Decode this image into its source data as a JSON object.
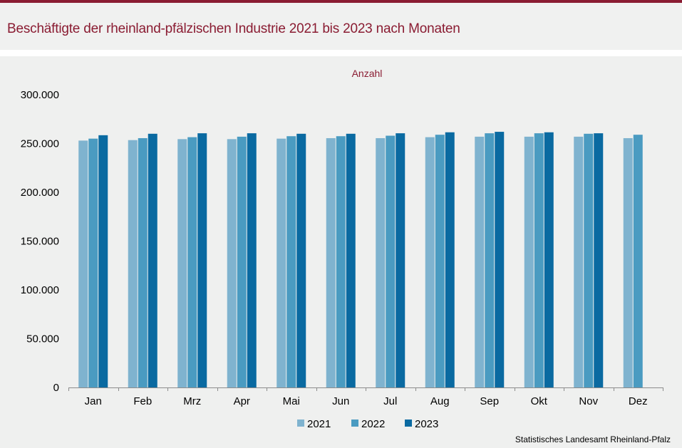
{
  "header": {
    "title": "Beschäftigte der rheinland-pfälzischen Industrie 2021 bis 2023 nach Monaten"
  },
  "footer": {
    "source": "Statistisches Landesamt  Rheinland-Pfalz"
  },
  "colors": {
    "accent": "#8a1c32",
    "series_2021": "#7fb3cf",
    "series_2022": "#4a9bc1",
    "series_2023": "#0a6aa1"
  },
  "chart_data": {
    "type": "bar",
    "title": "Beschäftigte der rheinland-pfälzischen Industrie 2021 bis 2023 nach Monaten",
    "unit_label": "Anzahl",
    "xlabel": "",
    "ylabel": "Anzahl",
    "ylim": [
      0,
      300000
    ],
    "yticks": [
      0,
      50000,
      100000,
      150000,
      200000,
      250000,
      300000
    ],
    "ytick_labels": [
      "0",
      "50.000",
      "100.000",
      "150.000",
      "200.000",
      "250.000",
      "300.000"
    ],
    "grid": false,
    "legend_position": "bottom-center",
    "categories": [
      "Jan",
      "Feb",
      "Mrz",
      "Apr",
      "Mai",
      "Jun",
      "Jul",
      "Aug",
      "Sep",
      "Okt",
      "Nov",
      "Dez"
    ],
    "series": [
      {
        "name": "2021",
        "values": [
          253000,
          253500,
          254500,
          254500,
          255000,
          255500,
          255500,
          256500,
          257000,
          257000,
          257000,
          255500
        ]
      },
      {
        "name": "2022",
        "values": [
          255000,
          255500,
          256500,
          257000,
          257500,
          257500,
          258000,
          259000,
          260500,
          260500,
          260000,
          259000
        ]
      },
      {
        "name": "2023",
        "values": [
          258500,
          260000,
          260500,
          260500,
          260000,
          260000,
          260500,
          261500,
          262000,
          261500,
          260500,
          null
        ]
      }
    ]
  }
}
